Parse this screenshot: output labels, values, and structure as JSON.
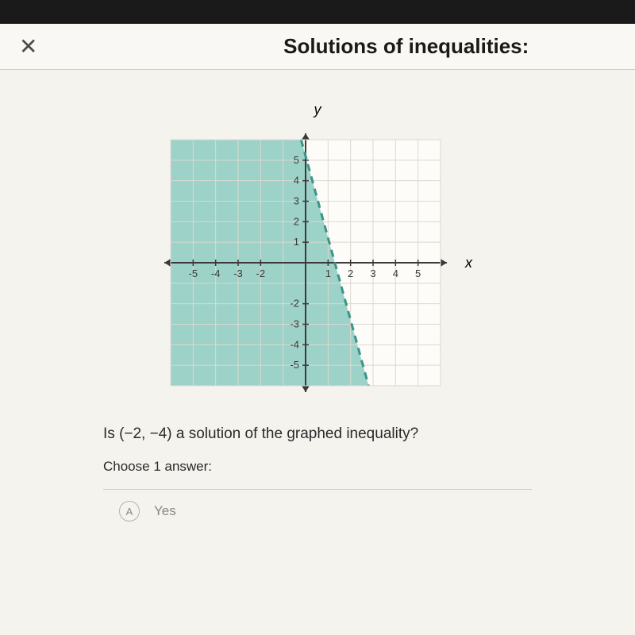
{
  "header": {
    "title": "Solutions of inequalities:"
  },
  "chart": {
    "type": "inequality-graph",
    "xlim": [
      -6,
      6
    ],
    "ylim": [
      -6,
      6
    ],
    "xticks": [
      -5,
      -4,
      -3,
      -2,
      1,
      2,
      3,
      4,
      5
    ],
    "yticks_pos": [
      1,
      2,
      3,
      4,
      5
    ],
    "yticks_neg": [
      -2,
      -3,
      -4,
      -5
    ],
    "xlabel": "x",
    "ylabel": "y",
    "grid_color": "#dcd9d0",
    "axis_color": "#3a3a3a",
    "background_color": "#fdfcf8",
    "shade_color": "#7bc4b8",
    "line_color": "#3a9488",
    "boundary_line": {
      "x1": -0.2,
      "y1": 6,
      "x2": 2.8,
      "y2": -6,
      "style": "dashed",
      "width": 3
    }
  },
  "question": {
    "text_prefix": "Is ",
    "point": "(−2, −4)",
    "text_suffix": " a solution of the graphed inequality?"
  },
  "prompt": "Choose 1 answer:",
  "answers": {
    "a_letter": "A",
    "a_label": "Yes"
  }
}
